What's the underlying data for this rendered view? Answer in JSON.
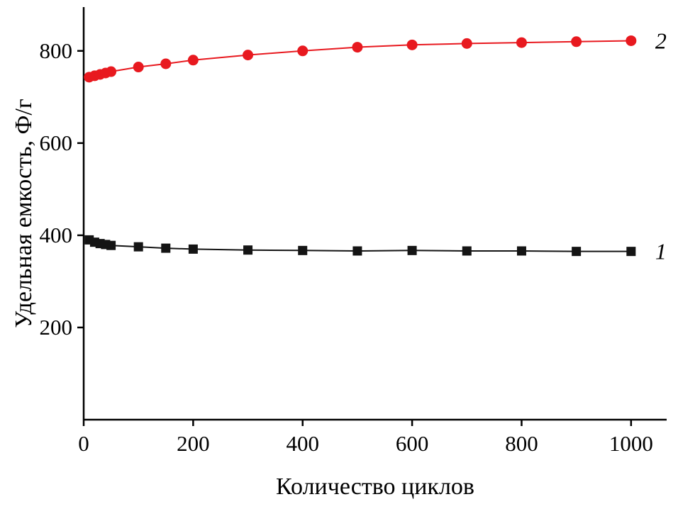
{
  "chart_data": {
    "type": "line",
    "title": "",
    "xlabel": "Количество циклов",
    "ylabel": "Удельная емкость, Ф/г",
    "xlim": [
      0,
      1065
    ],
    "ylim": [
      0,
      895
    ],
    "x_ticks": [
      0,
      200,
      400,
      600,
      800,
      1000
    ],
    "y_ticks": [
      200,
      400,
      600,
      800
    ],
    "grid": false,
    "legend_position": "series-end-labels",
    "axis_color": "#000000",
    "x": [
      10,
      20,
      30,
      40,
      50,
      100,
      150,
      200,
      300,
      400,
      500,
      600,
      700,
      800,
      900,
      1000
    ],
    "series": [
      {
        "name": "1",
        "marker": "square",
        "color": "#141414",
        "values": [
          390,
          385,
          382,
          380,
          378,
          375,
          372,
          370,
          368,
          367,
          366,
          367,
          366,
          366,
          365,
          365
        ]
      },
      {
        "name": "2",
        "marker": "circle",
        "color": "#e8191f",
        "values": [
          743,
          746,
          749,
          752,
          755,
          765,
          772,
          780,
          791,
          800,
          808,
          813,
          816,
          818,
          820,
          822
        ]
      }
    ]
  }
}
